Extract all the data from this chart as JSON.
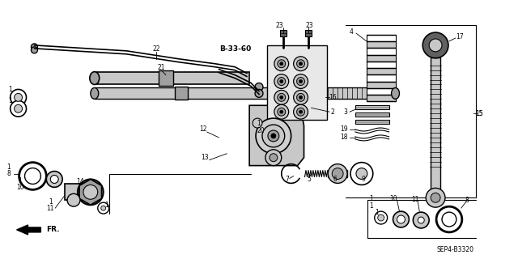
{
  "background_color": "#ffffff",
  "diagram_ref": "SEP4-B3320",
  "cross_ref": "B-33-60",
  "fig_width": 6.4,
  "fig_height": 3.2,
  "dpi": 100,
  "gray_light": "#c8c8c8",
  "gray_mid": "#a0a0a0",
  "gray_dark": "#606060"
}
